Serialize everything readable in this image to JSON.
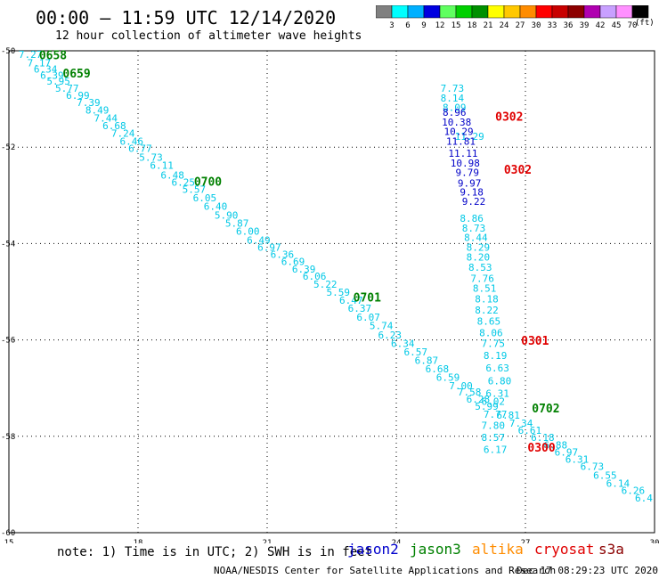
{
  "header": {
    "title": "00:00 — 11:59 UTC 12/14/2020",
    "subtitle": "12 hour collection of altimeter wave heights"
  },
  "colorbar": {
    "labels": [
      "3",
      "6",
      "9",
      "12",
      "15",
      "18",
      "21",
      "24",
      "27",
      "30",
      "33",
      "36",
      "39",
      "42",
      "45",
      "70"
    ],
    "unit": "(ft)",
    "colors": [
      "#808080",
      "#00ffff",
      "#00b0ff",
      "#0000e0",
      "#60ff60",
      "#00d000",
      "#009000",
      "#ffff00",
      "#ffc800",
      "#ff8c00",
      "#ff0000",
      "#c80000",
      "#8c0000",
      "#b000b0",
      "#c8a0ff",
      "#ff90ff",
      "#000000"
    ]
  },
  "chart_data": {
    "type": "scatter",
    "xlim": [
      15,
      30
    ],
    "ylim": [
      -60,
      -50
    ],
    "x_ticks": [
      "15",
      "18",
      "21",
      "24",
      "27",
      "30"
    ],
    "y_ticks": [
      "-50",
      "-52",
      "-54",
      "-56",
      "-58",
      "-60"
    ],
    "series": [
      {
        "name": "jason3",
        "color": "#00c8e6",
        "points": [
          {
            "x": 15.5,
            "y": -50.15,
            "v": "7.27"
          },
          {
            "x": 15.7,
            "y": -50.32,
            "v": "7.17"
          },
          {
            "x": 15.85,
            "y": -50.45,
            "v": "6.34"
          },
          {
            "x": 16.0,
            "y": -50.58,
            "v": "6.39"
          },
          {
            "x": 16.15,
            "y": -50.7,
            "v": "5.95"
          },
          {
            "x": 16.35,
            "y": -50.85,
            "v": "5.77"
          },
          {
            "x": 16.6,
            "y": -51.0,
            "v": "6.99"
          },
          {
            "x": 16.85,
            "y": -51.15,
            "v": "7.39"
          },
          {
            "x": 17.05,
            "y": -51.3,
            "v": "8.49"
          },
          {
            "x": 17.25,
            "y": -51.47,
            "v": "7.44"
          },
          {
            "x": 17.45,
            "y": -51.63,
            "v": "6.68"
          },
          {
            "x": 17.65,
            "y": -51.78,
            "v": "7.24"
          },
          {
            "x": 17.85,
            "y": -51.95,
            "v": "6.46"
          },
          {
            "x": 18.05,
            "y": -52.1,
            "v": "6.77"
          },
          {
            "x": 18.3,
            "y": -52.28,
            "v": "5.73"
          },
          {
            "x": 18.55,
            "y": -52.45,
            "v": "6.11"
          },
          {
            "x": 18.8,
            "y": -52.65,
            "v": "6.48"
          },
          {
            "x": 19.05,
            "y": -52.8,
            "v": "6.25"
          },
          {
            "x": 19.3,
            "y": -52.95,
            "v": "5.57"
          },
          {
            "x": 19.55,
            "y": -53.12,
            "v": "6.05"
          },
          {
            "x": 19.8,
            "y": -53.3,
            "v": "6.40"
          },
          {
            "x": 20.05,
            "y": -53.48,
            "v": "5.90"
          },
          {
            "x": 20.3,
            "y": -53.65,
            "v": "5.87"
          },
          {
            "x": 20.55,
            "y": -53.82,
            "v": "6.00"
          },
          {
            "x": 20.8,
            "y": -54.0,
            "v": "6.49"
          },
          {
            "x": 21.05,
            "y": -54.15,
            "v": "6.97"
          },
          {
            "x": 21.35,
            "y": -54.3,
            "v": "6.36"
          },
          {
            "x": 21.6,
            "y": -54.45,
            "v": "6.69"
          },
          {
            "x": 21.85,
            "y": -54.6,
            "v": "6.39"
          },
          {
            "x": 22.1,
            "y": -54.75,
            "v": "6.06"
          },
          {
            "x": 22.35,
            "y": -54.92,
            "v": "5.22"
          },
          {
            "x": 22.65,
            "y": -55.08,
            "v": "5.59"
          },
          {
            "x": 22.95,
            "y": -55.25,
            "v": "6.47"
          },
          {
            "x": 23.15,
            "y": -55.42,
            "v": "6.37"
          },
          {
            "x": 23.35,
            "y": -55.6,
            "v": "6.07"
          },
          {
            "x": 23.65,
            "y": -55.78,
            "v": "5.74"
          },
          {
            "x": 23.85,
            "y": -55.97,
            "v": "6.23"
          },
          {
            "x": 24.15,
            "y": -56.15,
            "v": "6.34"
          },
          {
            "x": 24.45,
            "y": -56.32,
            "v": "6.57"
          },
          {
            "x": 24.7,
            "y": -56.5,
            "v": "6.87"
          },
          {
            "x": 24.95,
            "y": -56.67,
            "v": "6.68"
          },
          {
            "x": 25.2,
            "y": -56.85,
            "v": "6.59"
          },
          {
            "x": 25.5,
            "y": -57.02,
            "v": "7.00"
          },
          {
            "x": 25.7,
            "y": -57.15,
            "v": "7.58"
          },
          {
            "x": 25.9,
            "y": -57.3,
            "v": "6.28"
          },
          {
            "x": 26.1,
            "y": -57.45,
            "v": "5.99"
          },
          {
            "x": 26.3,
            "y": -57.62,
            "v": "7.77"
          },
          {
            "x": 26.6,
            "y": -57.63,
            "v": "6.81"
          },
          {
            "x": 26.9,
            "y": -57.8,
            "v": "7.34"
          },
          {
            "x": 27.1,
            "y": -57.95,
            "v": "6.61"
          },
          {
            "x": 27.4,
            "y": -58.1,
            "v": "6.18"
          },
          {
            "x": 27.7,
            "y": -58.25,
            "v": "6.88"
          },
          {
            "x": 27.95,
            "y": -58.4,
            "v": "6.97"
          },
          {
            "x": 28.2,
            "y": -58.55,
            "v": "6.31"
          },
          {
            "x": 28.55,
            "y": -58.7,
            "v": "6.73"
          },
          {
            "x": 28.85,
            "y": -58.88,
            "v": "6.55"
          },
          {
            "x": 29.15,
            "y": -59.05,
            "v": "6.14"
          },
          {
            "x": 29.5,
            "y": -59.2,
            "v": "6.26"
          },
          {
            "x": 29.75,
            "y": -59.35,
            "v": "6.4"
          }
        ]
      },
      {
        "name": "altika",
        "color": "#00c8e6",
        "points": [
          {
            "x": 25.3,
            "y": -50.85,
            "v": "7.73"
          },
          {
            "x": 25.3,
            "y": -51.05,
            "v": "8.14"
          },
          {
            "x": 25.35,
            "y": -51.25,
            "v": "8.09"
          },
          {
            "x": 25.7,
            "y": -51.85,
            "v": "11.29"
          },
          {
            "x": 25.75,
            "y": -53.55,
            "v": "8.86"
          },
          {
            "x": 25.8,
            "y": -53.75,
            "v": "8.73"
          },
          {
            "x": 25.85,
            "y": -53.95,
            "v": "8.44"
          },
          {
            "x": 25.9,
            "y": -54.15,
            "v": "8.29"
          },
          {
            "x": 25.9,
            "y": -54.35,
            "v": "8.20"
          },
          {
            "x": 25.95,
            "y": -54.57,
            "v": "8.53"
          },
          {
            "x": 26.0,
            "y": -54.8,
            "v": "7.76"
          },
          {
            "x": 26.05,
            "y": -55.0,
            "v": "8.51"
          },
          {
            "x": 26.1,
            "y": -55.22,
            "v": "8.18"
          },
          {
            "x": 26.1,
            "y": -55.45,
            "v": "8.22"
          },
          {
            "x": 26.15,
            "y": -55.68,
            "v": "8.65"
          },
          {
            "x": 26.2,
            "y": -55.92,
            "v": "8.06"
          },
          {
            "x": 26.25,
            "y": -56.15,
            "v": "7.75"
          },
          {
            "x": 26.3,
            "y": -56.4,
            "v": "8.19"
          },
          {
            "x": 26.35,
            "y": -56.65,
            "v": "6.63"
          },
          {
            "x": 26.4,
            "y": -56.92,
            "v": "6.80"
          },
          {
            "x": 26.35,
            "y": -57.18,
            "v": "6.31"
          },
          {
            "x": 26.25,
            "y": -57.35,
            "v": "6.02"
          },
          {
            "x": 26.25,
            "y": -57.85,
            "v": "7.80"
          },
          {
            "x": 26.25,
            "y": -58.1,
            "v": "8.57"
          },
          {
            "x": 26.3,
            "y": -58.35,
            "v": "6.17"
          }
        ]
      },
      {
        "name": "jason2",
        "color": "#0000c8",
        "points": [
          {
            "x": 25.35,
            "y": -51.35,
            "v": "8.96"
          },
          {
            "x": 25.4,
            "y": -51.55,
            "v": "10.38"
          },
          {
            "x": 25.45,
            "y": -51.75,
            "v": "10.29"
          },
          {
            "x": 25.5,
            "y": -51.95,
            "v": "11.81"
          },
          {
            "x": 25.55,
            "y": -52.2,
            "v": "11.11"
          },
          {
            "x": 25.6,
            "y": -52.4,
            "v": "10.98"
          },
          {
            "x": 25.65,
            "y": -52.6,
            "v": "9.79"
          },
          {
            "x": 25.7,
            "y": -52.82,
            "v": "9.97"
          },
          {
            "x": 25.75,
            "y": -53.0,
            "v": "9.18"
          },
          {
            "x": 25.8,
            "y": -53.2,
            "v": "9.22"
          }
        ]
      }
    ],
    "time_labels": [
      {
        "x": 15.7,
        "y": -50.18,
        "t": "0658",
        "c": "#008000"
      },
      {
        "x": 16.25,
        "y": -50.55,
        "t": "0659",
        "c": "#008000"
      },
      {
        "x": 19.3,
        "y": -52.8,
        "t": "0700",
        "c": "#008000"
      },
      {
        "x": 23.0,
        "y": -55.2,
        "t": "0701",
        "c": "#008000"
      },
      {
        "x": 27.15,
        "y": -57.5,
        "t": "0702",
        "c": "#008000"
      },
      {
        "x": 26.3,
        "y": -51.45,
        "t": "0302",
        "c": "#e00000"
      },
      {
        "x": 26.5,
        "y": -52.55,
        "t": "0302",
        "c": "#e00000"
      },
      {
        "x": 26.9,
        "y": -56.1,
        "t": "0301",
        "c": "#e00000"
      },
      {
        "x": 27.05,
        "y": -58.32,
        "t": "0300",
        "c": "#e00000"
      }
    ]
  },
  "footer": {
    "note": "note: 1) Time is in UTC; 2) SWH is in feet",
    "legend": [
      {
        "label": "jason2",
        "color": "#0000cc"
      },
      {
        "label": "jason3",
        "color": "#008000"
      },
      {
        "label": "altika",
        "color": "#ff8c00"
      },
      {
        "label": "cryosat",
        "color": "#e00000"
      },
      {
        "label": "s3a",
        "color": "#8b0000"
      }
    ],
    "credit": "NOAA/NESDIS Center for Satellite Applications and Research",
    "timestamp": "Dec 17 08:29:23 UTC 2020"
  }
}
